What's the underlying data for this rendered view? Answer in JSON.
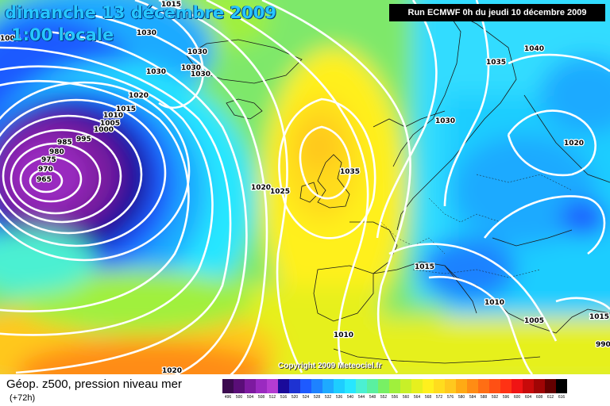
{
  "title": {
    "date": "dimanche 13 décembre 2009",
    "time": "1:00 locale"
  },
  "run_info": "Run ECMWF 0h du jeudi 10 décembre 2009",
  "copyright": "Copyright 2009 Meteociel.fr",
  "footer": {
    "title": "Géop. z500, pression niveau mer",
    "subtitle": "(+72h)"
  },
  "legend": {
    "labels": [
      "496",
      "500",
      "504",
      "508",
      "512",
      "516",
      "520",
      "524",
      "528",
      "532",
      "536",
      "540",
      "544",
      "548",
      "552",
      "556",
      "560",
      "564",
      "568",
      "572",
      "576",
      "580",
      "584",
      "588",
      "592",
      "596",
      "600",
      "604",
      "608",
      "612",
      "616"
    ],
    "colors": [
      "#3c0a50",
      "#5a0e78",
      "#7d1aa0",
      "#9a2ac0",
      "#b43cd2",
      "#1a0a9a",
      "#1e32d2",
      "#1e5aff",
      "#1e82ff",
      "#1eaaff",
      "#1ecdff",
      "#28e6ff",
      "#4bf0d2",
      "#5af0a0",
      "#78f064",
      "#a0f03c",
      "#c8f028",
      "#e6f01e",
      "#fff01e",
      "#ffdc1e",
      "#ffc81e",
      "#ffaa14",
      "#ff8c14",
      "#ff6e14",
      "#ff5014",
      "#ff3214",
      "#f01414",
      "#c80a0a",
      "#a00505",
      "#640000",
      "#000000"
    ]
  },
  "isobar_labels": [
    "1015",
    "1030",
    "1030",
    "1030",
    "1030",
    "1030",
    "1020",
    "1015",
    "1010",
    "1005",
    "1000",
    "995",
    "985",
    "980",
    "975",
    "970",
    "965",
    "1020",
    "1025",
    "1035",
    "1030",
    "1035",
    "1040",
    "1020",
    "1015",
    "1010",
    "1010",
    "1005",
    "1015",
    "1020",
    "1005",
    "990"
  ],
  "colors": {
    "low_center": "#8a1a9e",
    "high_center": "#f5b030",
    "isobar": "#ffffff"
  }
}
